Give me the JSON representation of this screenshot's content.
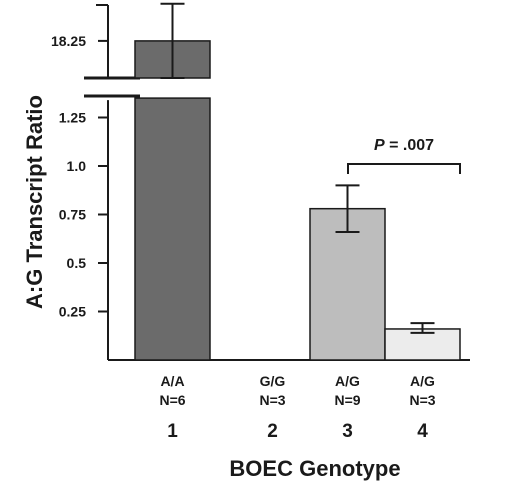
{
  "chart_data": {
    "type": "bar",
    "xlabel": "BOEC Genotype",
    "ylabel": "A:G Transcript Ratio",
    "y_axis_break": true,
    "y_ticks_lower": [
      "0.25",
      "0.5",
      "0.75",
      "1.0",
      "1.25"
    ],
    "y_ticks_upper": [
      "18.25"
    ],
    "categories": [
      {
        "number": "1",
        "genotype": "A/A",
        "n": "N=6"
      },
      {
        "number": "2",
        "genotype": "G/G",
        "n": "N=3"
      },
      {
        "number": "3",
        "genotype": "A/G",
        "n": "N=9"
      },
      {
        "number": "4",
        "genotype": "A/G",
        "n": "N=3"
      }
    ],
    "values": [
      18.25,
      0,
      0.78,
      0.16
    ],
    "error_low": [
      17.9,
      null,
      0.66,
      0.14
    ],
    "error_high": [
      18.6,
      null,
      0.9,
      0.19
    ],
    "bar_colors": [
      "#6b6b6b",
      null,
      "#bdbdbd",
      "#ececec"
    ],
    "annotation": {
      "p_label": "P",
      "p_value": " = .007",
      "between": [
        "3",
        "4"
      ]
    }
  }
}
